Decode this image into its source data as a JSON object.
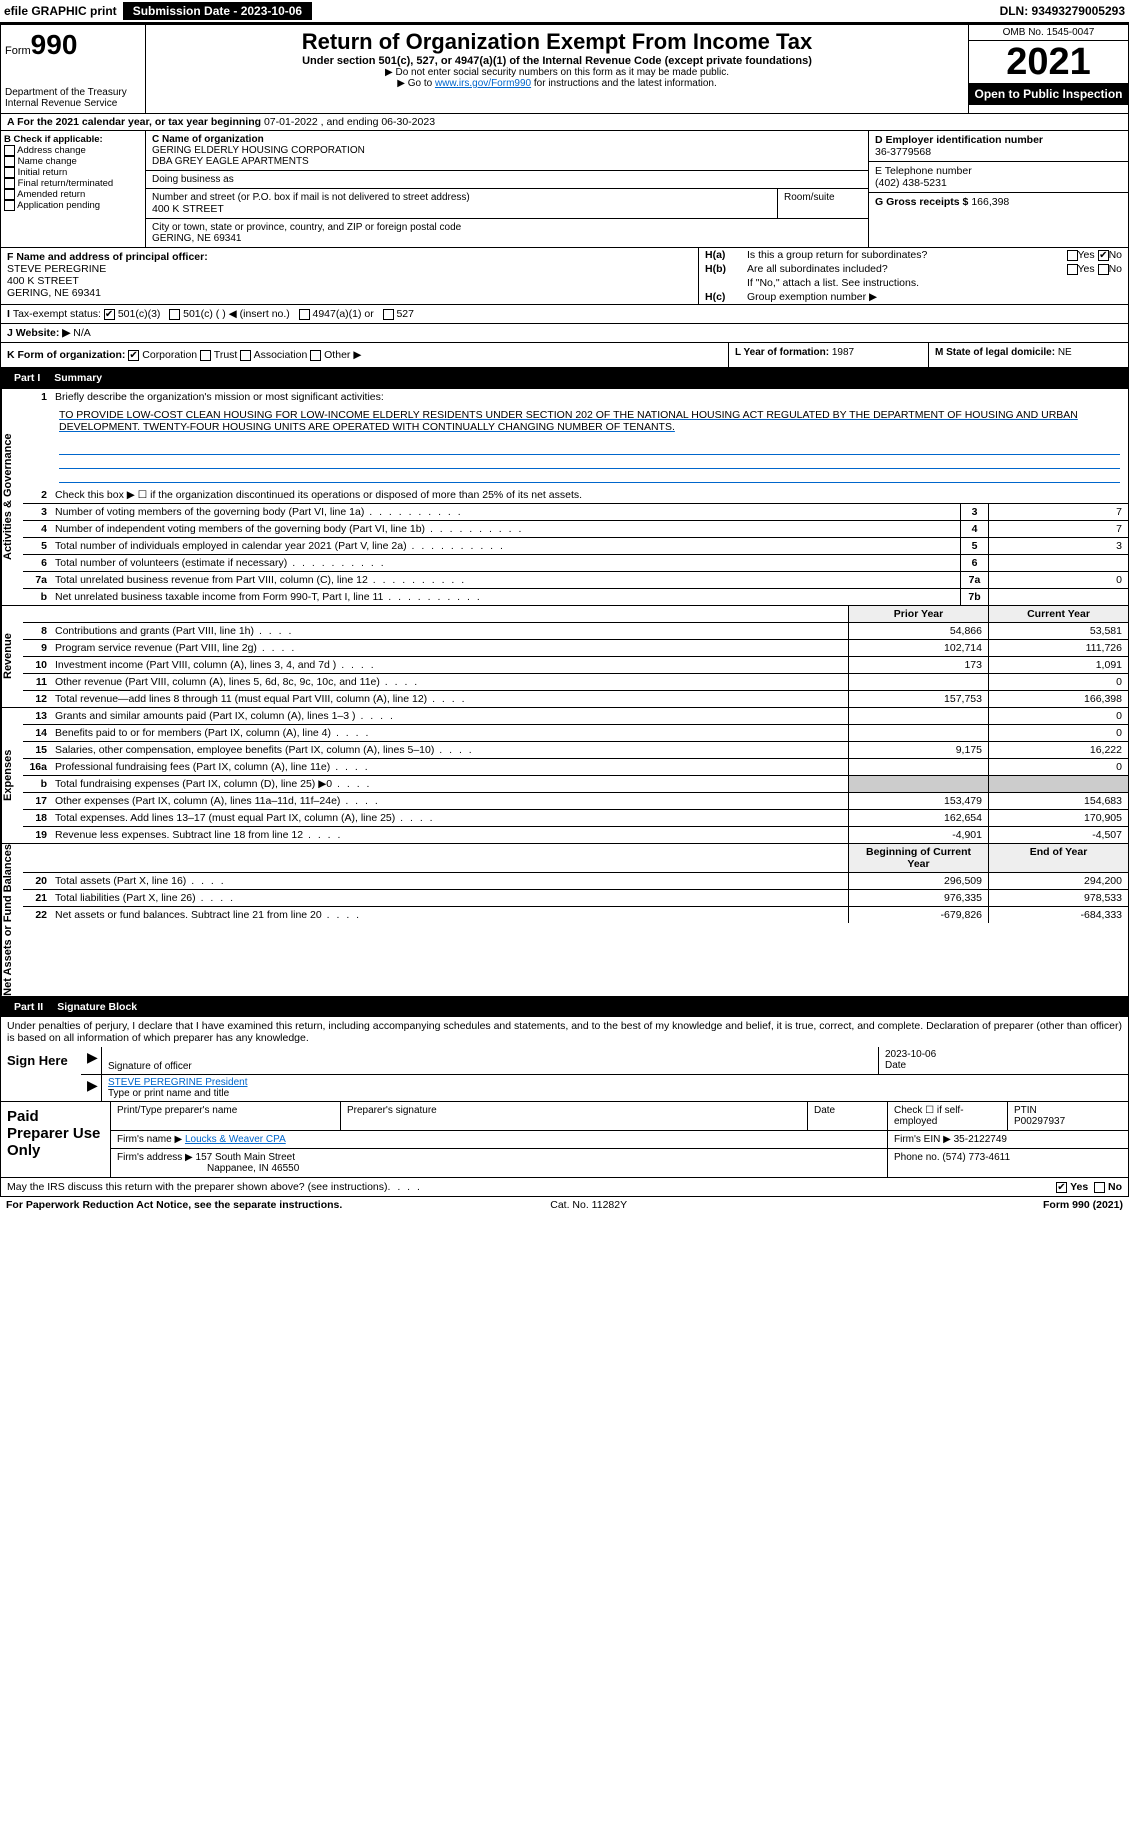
{
  "top": {
    "efile": "efile GRAPHIC print",
    "subdate_lbl": "Submission Date - 2023-10-06",
    "dln": "DLN: 93493279005293"
  },
  "header": {
    "form_word": "Form",
    "form_num": "990",
    "dept": "Department of the Treasury Internal Revenue Service",
    "title": "Return of Organization Exempt From Income Tax",
    "subtitle": "Under section 501(c), 527, or 4947(a)(1) of the Internal Revenue Code (except private foundations)",
    "note1": "▶ Do not enter social security numbers on this form as it may be made public.",
    "note2_pre": "▶ Go to ",
    "note2_link": "www.irs.gov/Form990",
    "note2_post": " for instructions and the latest information.",
    "omb": "OMB No. 1545-0047",
    "year": "2021",
    "open": "Open to Public Inspection"
  },
  "rowA": {
    "text_pre": "A For the 2021 calendar year, or tax year beginning ",
    "begin": "07-01-2022",
    "mid": " , and ending ",
    "end": "06-30-2023"
  },
  "colB": {
    "hdr": "B Check if applicable:",
    "items": [
      "Address change",
      "Name change",
      "Initial return",
      "Final return/terminated",
      "Amended return",
      "Application pending"
    ]
  },
  "colC": {
    "name_lbl": "C Name of organization",
    "name": "GERING ELDERLY HOUSING CORPORATION",
    "dba": "DBA GREY EAGLE APARTMENTS",
    "dba_lbl": "Doing business as",
    "addr_lbl": "Number and street (or P.O. box if mail is not delivered to street address)",
    "room_lbl": "Room/suite",
    "addr": "400 K STREET",
    "city_lbl": "City or town, state or province, country, and ZIP or foreign postal code",
    "city": "GERING, NE  69341"
  },
  "colD": {
    "ein_lbl": "D Employer identification number",
    "ein": "36-3779568",
    "tel_lbl": "E Telephone number",
    "tel": "(402) 438-5231",
    "gross_lbl": "G Gross receipts $",
    "gross": "166,398"
  },
  "rowF": {
    "lbl": "F Name and address of principal officer:",
    "name": "STEVE PEREGRINE",
    "addr1": "400 K STREET",
    "addr2": "GERING, NE  69341"
  },
  "rowH": {
    "a_lbl": "Is this a group return for subordinates?",
    "a_yes": "Yes",
    "a_no": "No",
    "b_lbl": "Are all subordinates included?",
    "b_yes": "Yes",
    "b_no": "No",
    "b_note": "If \"No,\" attach a list. See instructions.",
    "c_lbl": "Group exemption number ▶"
  },
  "rowI": {
    "lbl": "Tax-exempt status:",
    "o1": "501(c)(3)",
    "o2": "501(c) (   ) ◀ (insert no.)",
    "o3": "4947(a)(1) or",
    "o4": "527"
  },
  "rowJ": {
    "lbl": "Website: ▶",
    "val": "N/A"
  },
  "rowK": {
    "lbl": "K Form of organization:",
    "o1": "Corporation",
    "o2": "Trust",
    "o3": "Association",
    "o4": "Other ▶"
  },
  "rowL": {
    "lbl": "L Year of formation:",
    "val": "1987"
  },
  "rowM": {
    "lbl": "M State of legal domicile:",
    "val": "NE"
  },
  "part1": {
    "num": "Part I",
    "title": "Summary"
  },
  "p1": {
    "l1_lbl": "Briefly describe the organization's mission or most significant activities:",
    "l1_txt": "TO PROVIDE LOW-COST CLEAN HOUSING FOR LOW-INCOME ELDERLY RESIDENTS UNDER SECTION 202 OF THE NATIONAL HOUSING ACT REGULATED BY THE DEPARTMENT OF HOUSING AND URBAN DEVELOPMENT. TWENTY-FOUR HOUSING UNITS ARE OPERATED WITH CONTINUALLY CHANGING NUMBER OF TENANTS.",
    "l2": "Check this box ▶ ☐ if the organization discontinued its operations or disposed of more than 25% of its net assets.",
    "side_gov": "Activities & Governance",
    "side_rev": "Revenue",
    "side_exp": "Expenses",
    "side_net": "Net Assets or Fund Balances",
    "py_hdr": "Prior Year",
    "cy_hdr": "Current Year",
    "boy_hdr": "Beginning of Current Year",
    "eoy_hdr": "End of Year",
    "rows_gov": [
      {
        "n": "3",
        "t": "Number of voting members of the governing body (Part VI, line 1a)",
        "box": "3",
        "v": "7"
      },
      {
        "n": "4",
        "t": "Number of independent voting members of the governing body (Part VI, line 1b)",
        "box": "4",
        "v": "7"
      },
      {
        "n": "5",
        "t": "Total number of individuals employed in calendar year 2021 (Part V, line 2a)",
        "box": "5",
        "v": "3"
      },
      {
        "n": "6",
        "t": "Total number of volunteers (estimate if necessary)",
        "box": "6",
        "v": ""
      },
      {
        "n": "7a",
        "t": "Total unrelated business revenue from Part VIII, column (C), line 12",
        "box": "7a",
        "v": "0"
      },
      {
        "n": "b",
        "t": "Net unrelated business taxable income from Form 990-T, Part I, line 11",
        "box": "7b",
        "v": ""
      }
    ],
    "rows_rev": [
      {
        "n": "8",
        "t": "Contributions and grants (Part VIII, line 1h)",
        "py": "54,866",
        "cy": "53,581"
      },
      {
        "n": "9",
        "t": "Program service revenue (Part VIII, line 2g)",
        "py": "102,714",
        "cy": "111,726"
      },
      {
        "n": "10",
        "t": "Investment income (Part VIII, column (A), lines 3, 4, and 7d )",
        "py": "173",
        "cy": "1,091"
      },
      {
        "n": "11",
        "t": "Other revenue (Part VIII, column (A), lines 5, 6d, 8c, 9c, 10c, and 11e)",
        "py": "",
        "cy": "0"
      },
      {
        "n": "12",
        "t": "Total revenue—add lines 8 through 11 (must equal Part VIII, column (A), line 12)",
        "py": "157,753",
        "cy": "166,398"
      }
    ],
    "rows_exp": [
      {
        "n": "13",
        "t": "Grants and similar amounts paid (Part IX, column (A), lines 1–3 )",
        "py": "",
        "cy": "0"
      },
      {
        "n": "14",
        "t": "Benefits paid to or for members (Part IX, column (A), line 4)",
        "py": "",
        "cy": "0"
      },
      {
        "n": "15",
        "t": "Salaries, other compensation, employee benefits (Part IX, column (A), lines 5–10)",
        "py": "9,175",
        "cy": "16,222"
      },
      {
        "n": "16a",
        "t": "Professional fundraising fees (Part IX, column (A), line 11e)",
        "py": "",
        "cy": "0"
      },
      {
        "n": "b",
        "t": "Total fundraising expenses (Part IX, column (D), line 25) ▶0",
        "py": "",
        "cy": "",
        "shade": true
      },
      {
        "n": "17",
        "t": "Other expenses (Part IX, column (A), lines 11a–11d, 11f–24e)",
        "py": "153,479",
        "cy": "154,683"
      },
      {
        "n": "18",
        "t": "Total expenses. Add lines 13–17 (must equal Part IX, column (A), line 25)",
        "py": "162,654",
        "cy": "170,905"
      },
      {
        "n": "19",
        "t": "Revenue less expenses. Subtract line 18 from line 12",
        "py": "-4,901",
        "cy": "-4,507"
      }
    ],
    "rows_net": [
      {
        "n": "20",
        "t": "Total assets (Part X, line 16)",
        "py": "296,509",
        "cy": "294,200"
      },
      {
        "n": "21",
        "t": "Total liabilities (Part X, line 26)",
        "py": "976,335",
        "cy": "978,533"
      },
      {
        "n": "22",
        "t": "Net assets or fund balances. Subtract line 21 from line 20",
        "py": "-679,826",
        "cy": "-684,333"
      }
    ]
  },
  "part2": {
    "num": "Part II",
    "title": "Signature Block"
  },
  "sig": {
    "penalty": "Under penalties of perjury, I declare that I have examined this return, including accompanying schedules and statements, and to the best of my knowledge and belief, it is true, correct, and complete. Declaration of preparer (other than officer) is based on all information of which preparer has any knowledge.",
    "sign_here": "Sign Here",
    "sig_lbl": "Signature of officer",
    "date_lbl": "Date",
    "date": "2023-10-06",
    "name": "STEVE PEREGRINE President",
    "name_lbl": "Type or print name and title"
  },
  "prep": {
    "lbl": "Paid Preparer Use Only",
    "h1": "Print/Type preparer's name",
    "h2": "Preparer's signature",
    "h3": "Date",
    "h4_a": "Check ☐ if self-employed",
    "h4_b": "PTIN",
    "ptin": "P00297937",
    "firm_lbl": "Firm's name    ▶",
    "firm": "Loucks & Weaver CPA",
    "ein_lbl": "Firm's EIN ▶",
    "ein": "35-2122749",
    "addr_lbl": "Firm's address ▶",
    "addr1": "157 South Main Street",
    "addr2": "Nappanee, IN  46550",
    "tel_lbl": "Phone no.",
    "tel": "(574) 773-4611"
  },
  "footer": {
    "discuss": "May the IRS discuss this return with the preparer shown above? (see instructions)",
    "yes": "Yes",
    "no": "No",
    "pra": "For Paperwork Reduction Act Notice, see the separate instructions.",
    "cat": "Cat. No. 11282Y",
    "form": "Form 990 (2021)"
  }
}
